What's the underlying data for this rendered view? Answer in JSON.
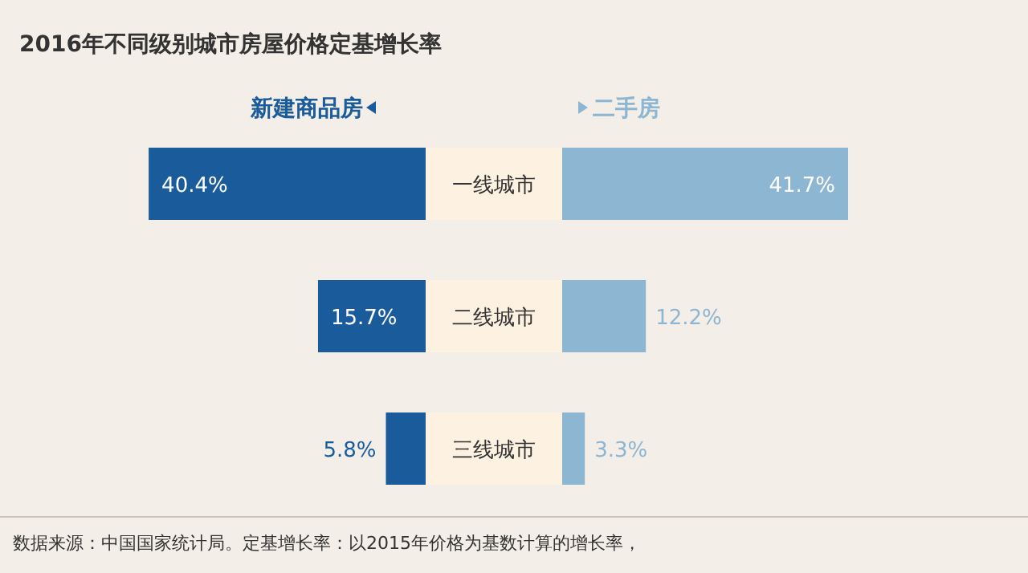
{
  "chart_data": [
    {
      "type": "bar",
      "orientation": "horizontal",
      "title": "2016年不同级别城市房屋价格定基增长率",
      "categories": [
        "一线城市",
        "二线城市",
        "三线城市"
      ],
      "series": [
        {
          "name": "新建商品房",
          "color": "#1a5c9b",
          "values": [
            40.4,
            15.7,
            5.8
          ],
          "value_labels": [
            "40.4%",
            "15.7%",
            "5.8%"
          ]
        }
      ],
      "legend": "top",
      "annotations": [
        "数据来源：中国国家统计局。定基增长率：以2015年价格为基数计算的增长率，"
      ]
    },
    {
      "type": "bar",
      "orientation": "horizontal",
      "categories": [
        null,
        null,
        null
      ],
      "series": [
        {
          "name": "二手房",
          "color": "#8db6d2",
          "values": [
            41.7,
            12.2,
            3.3
          ],
          "value_labels": [
            "41.7%",
            "12.2%",
            "3.3%"
          ]
        }
      ],
      "legend": "top"
    }
  ]
}
